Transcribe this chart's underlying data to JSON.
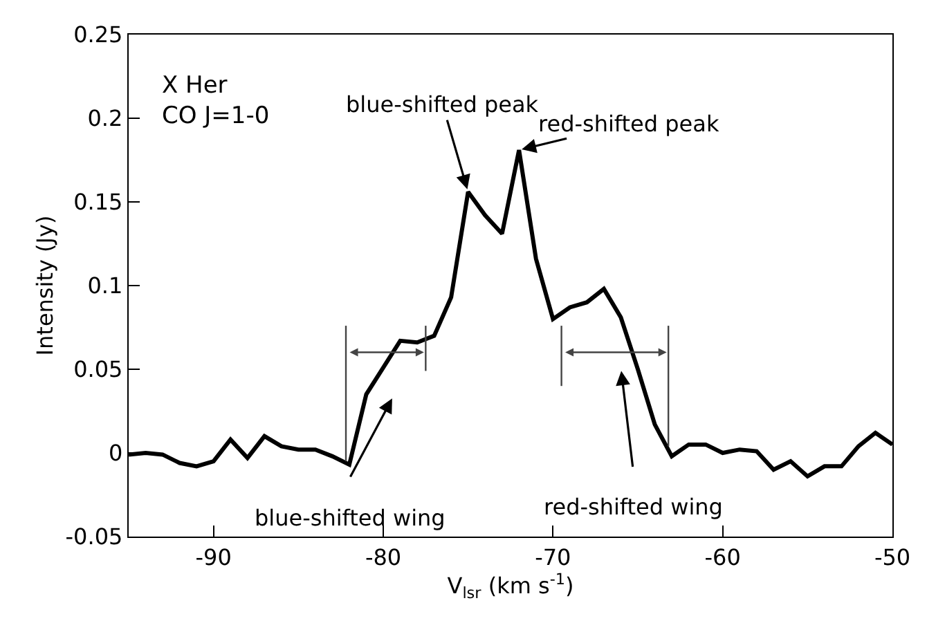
{
  "chart_data": {
    "type": "line",
    "xlabel": "V$_{lsr}$ (km s$^{-1}$)",
    "ylabel": "Intensity (Jy)",
    "x": [
      -95,
      -94,
      -93,
      -92,
      -91,
      -90,
      -89,
      -88,
      -87,
      -86,
      -85,
      -84,
      -83,
      -82,
      -81,
      -80,
      -79,
      -78,
      -77,
      -76,
      -75,
      -74,
      -73,
      -72,
      -71,
      -70,
      -69,
      -68,
      -67,
      -66,
      -65,
      -64,
      -63,
      -62,
      -61,
      -60,
      -59,
      -58,
      -57,
      -56,
      -55,
      -54,
      -53,
      -52,
      -51,
      -50
    ],
    "series": [
      {
        "color": "#000000",
        "values": [
          -0.001,
          0.0,
          -0.001,
          -0.006,
          -0.008,
          -0.005,
          0.008,
          -0.003,
          0.01,
          0.004,
          0.002,
          0.002,
          -0.002,
          -0.007,
          0.035,
          0.051,
          0.067,
          0.066,
          0.07,
          0.093,
          0.156,
          0.142,
          0.131,
          0.181,
          0.116,
          0.08,
          0.087,
          0.09,
          0.098,
          0.081,
          0.05,
          0.017,
          -0.002,
          0.005,
          0.005,
          0.0,
          0.002,
          0.001,
          -0.01,
          -0.005,
          -0.014,
          -0.008,
          -0.008,
          0.004,
          0.012,
          0.005
        ]
      }
    ],
    "xlim": [
      -95,
      -50
    ],
    "xticks": [
      -90,
      -80,
      -70,
      -60,
      -50
    ],
    "ylim": [
      -0.05,
      0.25
    ],
    "yticks": [
      {
        "value": -0.05,
        "label": "-0.05"
      },
      0,
      0.05,
      0.1,
      0.15,
      0.2,
      0.25
    ],
    "ref_lines": [
      {
        "axis": "x",
        "value": -82.2
      },
      {
        "axis": "x",
        "value": -77.5
      },
      {
        "axis": "x",
        "value": -69.5
      },
      {
        "axis": "x",
        "value": -63.2
      }
    ],
    "annotations": [
      "X Her\nCO J=1-0",
      {
        "text": "blue-shifted peak",
        "x": -75,
        "y": 0.156
      },
      {
        "text": "red-shifted peak",
        "x": -72,
        "y": 0.181
      },
      "blue-shifted wing",
      "red-shifted wing"
    ],
    "marker": "none",
    "line_style": "solid"
  }
}
